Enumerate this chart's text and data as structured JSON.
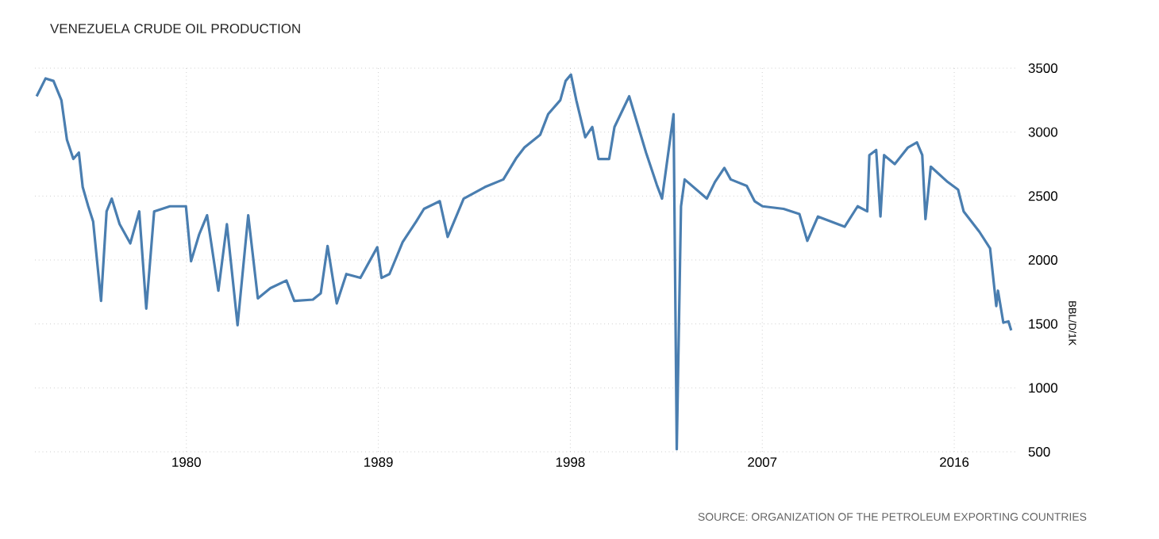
{
  "chart_data": {
    "type": "line",
    "title": "VENEZUELA CRUDE OIL PRODUCTION",
    "ylabel": "BBL/D/1K",
    "annotations": [
      "SOURCE: ORGANIZATION OF THE PETROLEUM EXPORTING COUNTRIES"
    ],
    "color": "#4a7eb0",
    "grid": true,
    "xlim": [
      1972.9,
      2018.9
    ],
    "ylim": [
      500,
      3500
    ],
    "xticks": [
      1980,
      1989,
      1998,
      2007,
      2016
    ],
    "yticks": [
      500,
      1000,
      1500,
      2000,
      2500,
      3000,
      3500
    ],
    "x": [
      1972.98,
      1973.4,
      1973.77,
      1974.14,
      1974.4,
      1974.7,
      1974.96,
      1975.14,
      1975.4,
      1975.63,
      1976.0,
      1976.26,
      1976.5,
      1976.87,
      1977.37,
      1977.79,
      1978.12,
      1978.49,
      1979.23,
      1979.98,
      1980.22,
      1980.6,
      1980.97,
      1981.5,
      1981.9,
      1982.4,
      1982.9,
      1983.35,
      1983.94,
      1984.69,
      1985.06,
      1985.93,
      1986.3,
      1986.62,
      1987.05,
      1987.5,
      1988.16,
      1988.95,
      1989.15,
      1989.52,
      1990.14,
      1990.77,
      1991.14,
      1991.88,
      1992.25,
      1993.0,
      1993.99,
      1994.86,
      1995.48,
      1995.85,
      1996.59,
      1996.96,
      1997.53,
      1997.78,
      1998.03,
      1998.28,
      1998.7,
      1999.03,
      1999.32,
      1999.82,
      2000.07,
      2000.76,
      2001.55,
      2002.05,
      2002.3,
      2002.84,
      2002.99,
      2003.19,
      2003.36,
      2004.4,
      2004.78,
      2005.22,
      2005.52,
      2006.27,
      2006.64,
      2007.01,
      2008.0,
      2008.74,
      2009.11,
      2009.61,
      2010.86,
      2011.47,
      2011.92,
      2012.02,
      2012.34,
      2012.54,
      2012.71,
      2013.21,
      2013.83,
      2014.25,
      2014.5,
      2014.65,
      2014.9,
      2015.69,
      2016.18,
      2016.44,
      2017.18,
      2017.68,
      2017.97,
      2018.05,
      2018.3,
      2018.54,
      2018.67
    ],
    "values": [
      3280,
      3420,
      3400,
      3250,
      2940,
      2790,
      2840,
      2570,
      2420,
      2300,
      1680,
      2380,
      2480,
      2280,
      2130,
      2380,
      1620,
      2380,
      2420,
      2420,
      1990,
      2200,
      2350,
      1760,
      2280,
      1490,
      2350,
      1700,
      1780,
      1840,
      1680,
      1690,
      1740,
      2110,
      1660,
      1890,
      1860,
      2100,
      1860,
      1890,
      2140,
      2300,
      2400,
      2460,
      2180,
      2480,
      2570,
      2630,
      2800,
      2880,
      2980,
      3140,
      3250,
      3400,
      3450,
      3250,
      2960,
      3040,
      2790,
      2790,
      3040,
      3280,
      2840,
      2590,
      2480,
      3140,
      520,
      2420,
      2630,
      2480,
      2610,
      2720,
      2630,
      2580,
      2460,
      2420,
      2400,
      2360,
      2150,
      2340,
      2260,
      2420,
      2380,
      2820,
      2860,
      2340,
      2820,
      2750,
      2880,
      2920,
      2820,
      2320,
      2730,
      2610,
      2550,
      2380,
      2220,
      2090,
      1640,
      1760,
      1510,
      1520,
      1450
    ]
  }
}
